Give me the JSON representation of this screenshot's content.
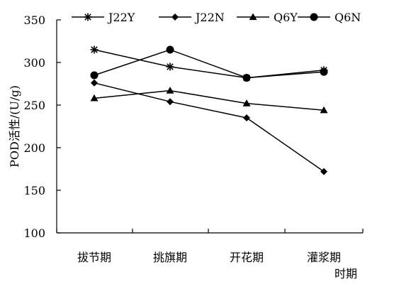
{
  "chart_data": {
    "type": "line",
    "xlabel": "时期",
    "ylabel": "POD活性/(U/g)",
    "ylim": [
      100,
      350
    ],
    "yticks": [
      100,
      150,
      200,
      250,
      300,
      350
    ],
    "categories": [
      "拔节期",
      "挑旗期",
      "开花期",
      "灌浆期"
    ],
    "grid": false,
    "legend_position": "top",
    "series": [
      {
        "name": "J22Y",
        "marker": "asterisk",
        "values": [
          315,
          295,
          282,
          291
        ]
      },
      {
        "name": "J22N",
        "marker": "diamond",
        "values": [
          276,
          254,
          235,
          172
        ]
      },
      {
        "name": "Q6Y",
        "marker": "triangle",
        "values": [
          258,
          267,
          252,
          244
        ]
      },
      {
        "name": "Q6N",
        "marker": "circle",
        "values": [
          285,
          315,
          282,
          289
        ]
      }
    ],
    "colors": {
      "line": "#000000",
      "axis": "#000000",
      "background": "#ffffff"
    }
  }
}
